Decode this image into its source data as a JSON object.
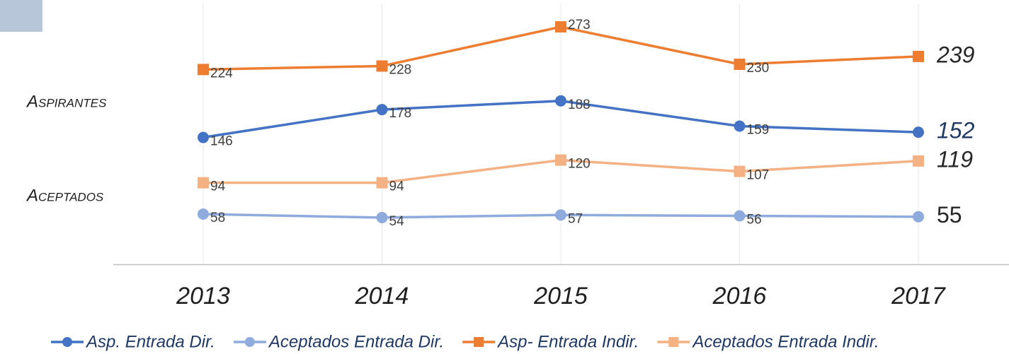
{
  "chart_data": {
    "type": "line",
    "categories": [
      "2013",
      "2014",
      "2015",
      "2016",
      "2017"
    ],
    "series": [
      {
        "name": "Asp. Entrada Dir.",
        "color": "#4472c4",
        "marker": "circle",
        "values": [
          146,
          178,
          188,
          159,
          152
        ]
      },
      {
        "name": "Aceptados Entrada Dir.",
        "color": "#8faadc",
        "marker": "circle",
        "values": [
          58,
          54,
          57,
          56,
          55
        ]
      },
      {
        "name": "Asp- Entrada Indir.",
        "color": "#ed7d31",
        "marker": "square",
        "values": [
          224,
          228,
          273,
          230,
          239
        ]
      },
      {
        "name": "Aceptados Entrada Indir.",
        "color": "#f4b183",
        "marker": "square",
        "values": [
          94,
          94,
          120,
          107,
          119
        ]
      }
    ],
    "annotations": [
      "Aspirantes",
      "Aceptados"
    ],
    "ylim": [
      0,
      300
    ],
    "grid": true,
    "legend": "bottom"
  }
}
